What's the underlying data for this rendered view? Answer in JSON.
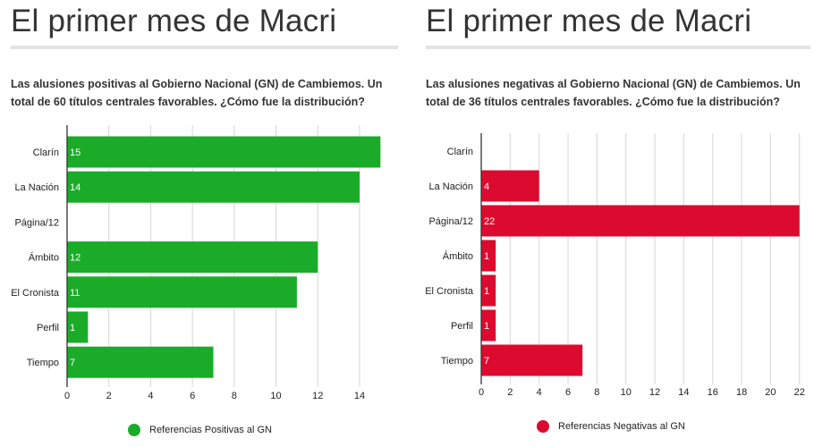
{
  "charts": {
    "left": {
      "title": "El primer mes de Macri",
      "subtitle": "Las alusiones positivas al Gobierno Nacional (GN) de Cambiemos. Un total de 60 títulos centrales favorables. ¿Cómo fue la distribución?",
      "legend_label": "Referencias Positivas al GN",
      "color": "#1aac28"
    },
    "right": {
      "title": "El primer mes de Macri",
      "subtitle": "Las alusiones negativas al Gobierno Nacional (GN) de Cambiemos. Un total de 36 títulos centrales favorables. ¿Cómo fue la distribución?",
      "legend_label": "Referencias Negativas al GN",
      "color": "#dd0a2f"
    }
  },
  "chart_data": [
    {
      "type": "bar",
      "orientation": "horizontal",
      "title": "El primer mes de Macri",
      "categories": [
        "Clarín",
        "La Nación",
        "Página/12",
        "Ámbito",
        "El Cronista",
        "Perfil",
        "Tiempo"
      ],
      "series": [
        {
          "name": "Referencias Positivas al GN",
          "values": [
            15,
            14,
            null,
            12,
            11,
            1,
            7
          ],
          "color": "#1aac28"
        }
      ],
      "data_labels": [
        "15",
        "14",
        "",
        "12",
        "11",
        "1",
        "7"
      ],
      "x_ticks": [
        0,
        2,
        4,
        6,
        8,
        10,
        12,
        14
      ],
      "xlim": [
        0,
        15.5
      ],
      "grid": true,
      "legend_position": "bottom"
    },
    {
      "type": "bar",
      "orientation": "horizontal",
      "title": "El primer mes de Macri",
      "categories": [
        "Clarín",
        "La Nación",
        "Página/12",
        "Ámbito",
        "El Cronista",
        "Perfil",
        "Tiempo"
      ],
      "series": [
        {
          "name": "Referencias Negativas al GN",
          "values": [
            null,
            4,
            22,
            1,
            1,
            1,
            7
          ],
          "color": "#dd0a2f"
        }
      ],
      "data_labels": [
        "",
        "4",
        "22",
        "1",
        "1",
        "1",
        "7"
      ],
      "x_ticks": [
        0,
        2,
        4,
        6,
        8,
        10,
        12,
        14,
        16,
        18,
        20,
        22
      ],
      "xlim": [
        0,
        22.2
      ],
      "grid": true,
      "legend_position": "bottom"
    }
  ]
}
